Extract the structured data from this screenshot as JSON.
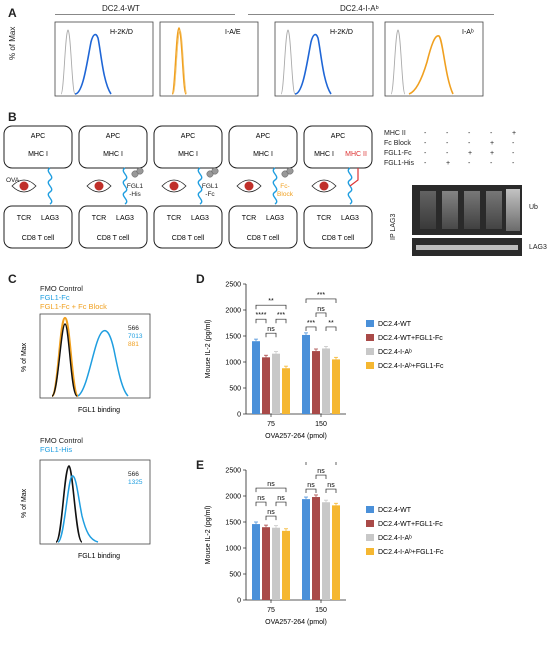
{
  "panels": {
    "A": {
      "label": "A",
      "groups": [
        "DC2.4-WT",
        "DC2.4-I-Aᵇ"
      ],
      "ylabel": "% of Max",
      "hist_labels": [
        "H-2K/D",
        "I-A/E",
        "H-2K/D",
        "I-Aᵇ"
      ],
      "colors": {
        "blue": "#1f66d6",
        "orange": "#f0a020",
        "gray": "#aaaaaa"
      }
    },
    "B": {
      "label": "B",
      "cells": [
        {
          "apc": "APC",
          "mhc": "MHC I",
          "extra": "OVA",
          "tcr": "TCR",
          "lag3": "LAG3",
          "cd8": "CD8 T cell"
        },
        {
          "apc": "APC",
          "mhc": "MHC I",
          "extra": "FGL1\n-His",
          "tcr": "TCR",
          "lag3": "LAG3",
          "cd8": "CD8 T cell"
        },
        {
          "apc": "APC",
          "mhc": "MHC I",
          "extra": "FGL1\n-Fc",
          "tcr": "TCR",
          "lag3": "LAG3",
          "cd8": "CD8 T cell"
        },
        {
          "apc": "APC",
          "mhc": "MHC I",
          "extra": "Fc-\nBlock",
          "tcr": "TCR",
          "lag3": "LAG3",
          "cd8": "CD8 T cell"
        },
        {
          "apc": "APC",
          "mhc": "MHC I",
          "mhc2": "MHC II",
          "tcr": "TCR",
          "lag3": "LAG3",
          "cd8": "CD8 T cell"
        }
      ],
      "blot_rows": [
        {
          "label": "MHC II",
          "marks": [
            "-",
            "-",
            "-",
            "-",
            "+"
          ]
        },
        {
          "label": "Fc Block",
          "marks": [
            "-",
            "-",
            "-",
            "+",
            "-"
          ]
        },
        {
          "label": "FGL1-Fc",
          "marks": [
            "-",
            "-",
            "+",
            "+",
            "-"
          ]
        },
        {
          "label": "FGL1-His",
          "marks": [
            "-",
            "+",
            "-",
            "-",
            "-"
          ]
        }
      ],
      "blot_side": "IP LAG3",
      "blot_ub": "Ub",
      "blot_lag3": "LAG3"
    },
    "C": {
      "label": "C",
      "top": {
        "legend": [
          {
            "text": "FMO Control",
            "color": "#222222"
          },
          {
            "text": "FGL1-Fc",
            "color": "#1f9ee0"
          },
          {
            "text": "FGL1-Fc + Fc Block",
            "color": "#f0a020"
          }
        ],
        "mfi": [
          {
            "text": "566",
            "color": "#222222"
          },
          {
            "text": "7013",
            "color": "#1f9ee0"
          },
          {
            "text": "881",
            "color": "#f0a020"
          }
        ],
        "ylabel": "% of Max",
        "xlabel": "FGL1 binding"
      },
      "bottom": {
        "legend": [
          {
            "text": "FMO Control",
            "color": "#222222"
          },
          {
            "text": "FGL1-His",
            "color": "#1f9ee0"
          }
        ],
        "mfi": [
          {
            "text": "566",
            "color": "#222222"
          },
          {
            "text": "1325",
            "color": "#1f9ee0"
          }
        ],
        "ylabel": "% of Max",
        "xlabel": "FGL1 binding"
      }
    },
    "D": {
      "label": "D"
    },
    "E": {
      "label": "E"
    }
  },
  "chart_data": [
    {
      "type": "bar",
      "panel": "D",
      "categories": [
        "75",
        "150"
      ],
      "xlabel": "OVA257-264 (pmol)",
      "ylabel": "Mouse IL-2 (pg/ml)",
      "ylim": [
        0,
        2500
      ],
      "yticks": [
        0,
        500,
        1000,
        1500,
        2000,
        2500
      ],
      "series": [
        {
          "name": "DC2.4-WT",
          "color": "#4a90d9",
          "values": [
            1400,
            1520
          ]
        },
        {
          "name": "DC2.4-WT+FGL1-Fc",
          "color": "#a94a48",
          "values": [
            1090,
            1210
          ]
        },
        {
          "name": "DC2.4-I-Aᵇ",
          "color": "#c8c8c8",
          "values": [
            1160,
            1260
          ]
        },
        {
          "name": "DC2.4-I-Aᵇ+FGL1-Fc",
          "color": "#f5b731",
          "values": [
            880,
            1050
          ]
        }
      ],
      "significance": [
        {
          "group": 0,
          "from": 0,
          "to": 3,
          "level": 3,
          "text": "**"
        },
        {
          "group": 0,
          "from": 0,
          "to": 1,
          "level": 2,
          "text": "****"
        },
        {
          "group": 0,
          "from": 2,
          "to": 3,
          "level": 2,
          "text": "***"
        },
        {
          "group": 0,
          "from": 1,
          "to": 2,
          "level": 1,
          "text": "ns"
        },
        {
          "group": 1,
          "from": 0,
          "to": 3,
          "level": 3,
          "text": "***"
        },
        {
          "group": 1,
          "from": 1,
          "to": 2,
          "level": 2,
          "text": "ns"
        },
        {
          "group": 1,
          "from": 0,
          "to": 1,
          "level": 1,
          "text": "***"
        },
        {
          "group": 1,
          "from": 2,
          "to": 3,
          "level": 1,
          "text": "**"
        }
      ]
    },
    {
      "type": "bar",
      "panel": "E",
      "categories": [
        "75",
        "150"
      ],
      "xlabel": "OVA257-264 (pmol)",
      "ylabel": "Mouse IL-2 (pg/ml)",
      "ylim": [
        0,
        2500
      ],
      "yticks": [
        0,
        500,
        1000,
        1500,
        2000,
        2500
      ],
      "series": [
        {
          "name": "DC2.4-WT",
          "color": "#4a90d9",
          "values": [
            1460,
            1940
          ]
        },
        {
          "name": "DC2.4-WT+FGL1-Fc",
          "color": "#a94a48",
          "values": [
            1400,
            1980
          ]
        },
        {
          "name": "DC2.4-I-Aᵇ",
          "color": "#c8c8c8",
          "values": [
            1390,
            1880
          ]
        },
        {
          "name": "DC2.4-I-Aᵇ+FGL1-Fc",
          "color": "#f5b731",
          "values": [
            1330,
            1820
          ]
        }
      ],
      "significance": [
        {
          "group": 0,
          "from": 0,
          "to": 3,
          "level": 3,
          "text": "ns"
        },
        {
          "group": 0,
          "from": 0,
          "to": 1,
          "level": 2,
          "text": "ns"
        },
        {
          "group": 0,
          "from": 2,
          "to": 3,
          "level": 2,
          "text": "ns"
        },
        {
          "group": 0,
          "from": 1,
          "to": 2,
          "level": 1,
          "text": "ns"
        },
        {
          "group": 1,
          "from": 0,
          "to": 3,
          "level": 3,
          "text": "ns"
        },
        {
          "group": 1,
          "from": 1,
          "to": 2,
          "level": 2,
          "text": "ns"
        },
        {
          "group": 1,
          "from": 0,
          "to": 1,
          "level": 1,
          "text": "ns"
        },
        {
          "group": 1,
          "from": 2,
          "to": 3,
          "level": 1,
          "text": "ns"
        }
      ]
    }
  ]
}
